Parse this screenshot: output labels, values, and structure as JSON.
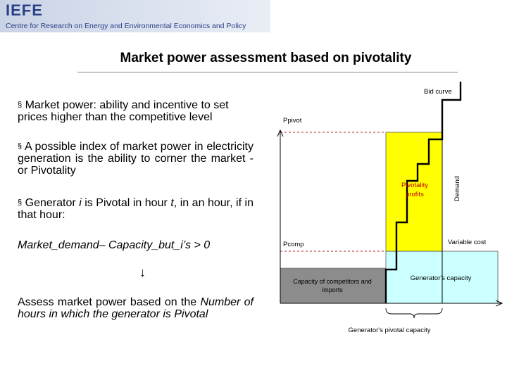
{
  "header": {
    "logo_text": "IEFE",
    "subtitle": "Centre for Research on Energy and Environmental Economics and Policy"
  },
  "title": "Market power assessment based on pivotality",
  "bullets": {
    "b1": "Market power: ability and incentive to set prices higher than the competitive level",
    "b2": "A possible index of market power in electricity generation is the ability to corner the market - or Pivotality",
    "b3_pre": "Generator ",
    "b3_i": "i",
    "b3_mid": " is Pivotal in hour ",
    "b3_t": "t",
    "b3_post": ", in an hour, if in that hour:",
    "bullet_glyph": "§"
  },
  "formula": "Market_demand– Capacity_but_i’s > 0",
  "arrow": "↓",
  "assess": {
    "pre": "Assess market power based on the ",
    "em": "Number of hours in which the generator is Pivotal"
  },
  "diagram": {
    "bid_curve": "Bid curve",
    "ppivot": "Ppivot",
    "demand": "Demand",
    "pivotality_profits": [
      "Pivotality",
      "profits"
    ],
    "variable_cost": "Variable cost",
    "pcomp": "Pcomp",
    "competitors": [
      "Capacity of competitors and",
      "imports"
    ],
    "generators_capacity": "Generator's capacity",
    "pivotal_capacity": "Generator's pivotal capacity",
    "colors": {
      "competitors_fill": "#8c8c8c",
      "generator_fill": "#ccffff",
      "profits_fill": "#ffff00",
      "dashed_lines": "#c0504d",
      "banner_text": "#2b3f86"
    }
  }
}
